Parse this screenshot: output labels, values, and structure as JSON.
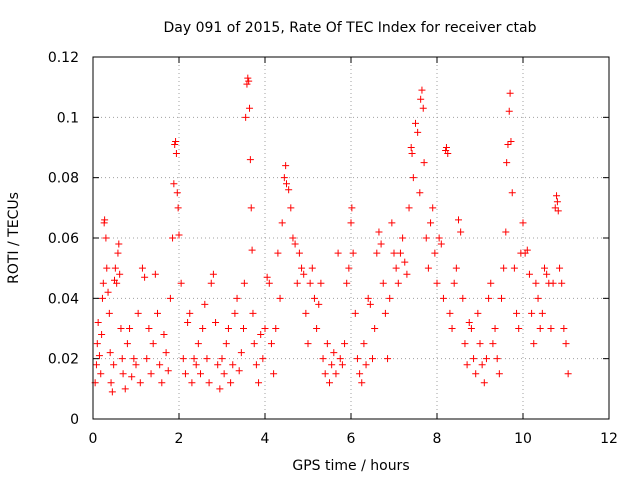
{
  "chart_data": {
    "type": "scatter",
    "title": "Day 091 of 2015, Rate Of TEC Index for receiver ctab",
    "xlabel": "GPS time / hours",
    "ylabel": "ROTI / TECUs",
    "xlim": [
      0,
      12
    ],
    "ylim": [
      0,
      0.12
    ],
    "xticks": [
      0,
      2,
      4,
      6,
      8,
      10,
      12
    ],
    "xtick_labels": [
      "0",
      "2",
      "4",
      "6",
      "8",
      "10",
      "12"
    ],
    "yticks": [
      0,
      0.02,
      0.04,
      0.06,
      0.08,
      0.1,
      0.12
    ],
    "ytick_labels": [
      "0",
      "0.02",
      "0.04",
      "0.06",
      "0.08",
      "0.1",
      "0.12"
    ],
    "grid": true,
    "marker": "+",
    "color": "#ff0000",
    "series": [
      {
        "name": "ROTI",
        "points": [
          [
            0.05,
            0.012
          ],
          [
            0.08,
            0.018
          ],
          [
            0.1,
            0.025
          ],
          [
            0.12,
            0.032
          ],
          [
            0.15,
            0.021
          ],
          [
            0.18,
            0.015
          ],
          [
            0.2,
            0.028
          ],
          [
            0.22,
            0.04
          ],
          [
            0.24,
            0.045
          ],
          [
            0.26,
            0.065
          ],
          [
            0.27,
            0.066
          ],
          [
            0.3,
            0.06
          ],
          [
            0.32,
            0.05
          ],
          [
            0.35,
            0.042
          ],
          [
            0.38,
            0.035
          ],
          [
            0.4,
            0.022
          ],
          [
            0.42,
            0.012
          ],
          [
            0.45,
            0.009
          ],
          [
            0.48,
            0.018
          ],
          [
            0.5,
            0.046
          ],
          [
            0.52,
            0.05
          ],
          [
            0.55,
            0.045
          ],
          [
            0.58,
            0.055
          ],
          [
            0.6,
            0.058
          ],
          [
            0.62,
            0.048
          ],
          [
            0.65,
            0.03
          ],
          [
            0.68,
            0.02
          ],
          [
            0.7,
            0.015
          ],
          [
            0.75,
            0.01
          ],
          [
            0.8,
            0.025
          ],
          [
            0.85,
            0.03
          ],
          [
            0.9,
            0.014
          ],
          [
            0.95,
            0.02
          ],
          [
            1.0,
            0.018
          ],
          [
            1.05,
            0.035
          ],
          [
            1.1,
            0.012
          ],
          [
            1.15,
            0.05
          ],
          [
            1.2,
            0.047
          ],
          [
            1.25,
            0.02
          ],
          [
            1.3,
            0.03
          ],
          [
            1.35,
            0.015
          ],
          [
            1.4,
            0.025
          ],
          [
            1.45,
            0.048
          ],
          [
            1.5,
            0.035
          ],
          [
            1.55,
            0.018
          ],
          [
            1.6,
            0.012
          ],
          [
            1.65,
            0.028
          ],
          [
            1.7,
            0.022
          ],
          [
            1.75,
            0.016
          ],
          [
            1.8,
            0.04
          ],
          [
            1.85,
            0.06
          ],
          [
            1.88,
            0.078
          ],
          [
            1.9,
            0.091
          ],
          [
            1.92,
            0.092
          ],
          [
            1.94,
            0.088
          ],
          [
            1.96,
            0.075
          ],
          [
            1.98,
            0.07
          ],
          [
            2.0,
            0.061
          ],
          [
            2.05,
            0.045
          ],
          [
            2.1,
            0.02
          ],
          [
            2.15,
            0.015
          ],
          [
            2.2,
            0.032
          ],
          [
            2.25,
            0.035
          ],
          [
            2.3,
            0.012
          ],
          [
            2.35,
            0.02
          ],
          [
            2.4,
            0.018
          ],
          [
            2.45,
            0.025
          ],
          [
            2.5,
            0.015
          ],
          [
            2.55,
            0.03
          ],
          [
            2.6,
            0.038
          ],
          [
            2.65,
            0.02
          ],
          [
            2.7,
            0.012
          ],
          [
            2.75,
            0.045
          ],
          [
            2.8,
            0.048
          ],
          [
            2.85,
            0.032
          ],
          [
            2.9,
            0.018
          ],
          [
            2.95,
            0.01
          ],
          [
            3.0,
            0.02
          ],
          [
            3.05,
            0.015
          ],
          [
            3.1,
            0.025
          ],
          [
            3.15,
            0.03
          ],
          [
            3.2,
            0.012
          ],
          [
            3.25,
            0.018
          ],
          [
            3.3,
            0.035
          ],
          [
            3.35,
            0.04
          ],
          [
            3.4,
            0.016
          ],
          [
            3.45,
            0.022
          ],
          [
            3.5,
            0.03
          ],
          [
            3.52,
            0.045
          ],
          [
            3.55,
            0.1
          ],
          [
            3.58,
            0.111
          ],
          [
            3.6,
            0.113
          ],
          [
            3.62,
            0.112
          ],
          [
            3.64,
            0.103
          ],
          [
            3.66,
            0.086
          ],
          [
            3.68,
            0.07
          ],
          [
            3.7,
            0.056
          ],
          [
            3.72,
            0.035
          ],
          [
            3.75,
            0.025
          ],
          [
            3.8,
            0.018
          ],
          [
            3.85,
            0.012
          ],
          [
            3.9,
            0.028
          ],
          [
            3.95,
            0.02
          ],
          [
            4.0,
            0.03
          ],
          [
            4.05,
            0.047
          ],
          [
            4.1,
            0.045
          ],
          [
            4.15,
            0.025
          ],
          [
            4.2,
            0.015
          ],
          [
            4.25,
            0.03
          ],
          [
            4.3,
            0.055
          ],
          [
            4.35,
            0.04
          ],
          [
            4.4,
            0.065
          ],
          [
            4.45,
            0.08
          ],
          [
            4.48,
            0.084
          ],
          [
            4.5,
            0.078
          ],
          [
            4.55,
            0.076
          ],
          [
            4.6,
            0.07
          ],
          [
            4.65,
            0.06
          ],
          [
            4.7,
            0.058
          ],
          [
            4.75,
            0.045
          ],
          [
            4.8,
            0.055
          ],
          [
            4.85,
            0.05
          ],
          [
            4.9,
            0.048
          ],
          [
            4.95,
            0.035
          ],
          [
            5.0,
            0.025
          ],
          [
            5.05,
            0.045
          ],
          [
            5.1,
            0.05
          ],
          [
            5.15,
            0.04
          ],
          [
            5.2,
            0.03
          ],
          [
            5.25,
            0.038
          ],
          [
            5.3,
            0.045
          ],
          [
            5.35,
            0.02
          ],
          [
            5.4,
            0.015
          ],
          [
            5.45,
            0.025
          ],
          [
            5.5,
            0.012
          ],
          [
            5.55,
            0.018
          ],
          [
            5.6,
            0.022
          ],
          [
            5.65,
            0.015
          ],
          [
            5.7,
            0.055
          ],
          [
            5.75,
            0.02
          ],
          [
            5.8,
            0.018
          ],
          [
            5.85,
            0.025
          ],
          [
            5.9,
            0.045
          ],
          [
            5.95,
            0.05
          ],
          [
            6.0,
            0.065
          ],
          [
            6.02,
            0.07
          ],
          [
            6.05,
            0.055
          ],
          [
            6.1,
            0.035
          ],
          [
            6.15,
            0.02
          ],
          [
            6.2,
            0.015
          ],
          [
            6.25,
            0.012
          ],
          [
            6.3,
            0.025
          ],
          [
            6.35,
            0.018
          ],
          [
            6.4,
            0.04
          ],
          [
            6.45,
            0.038
          ],
          [
            6.5,
            0.02
          ],
          [
            6.55,
            0.03
          ],
          [
            6.6,
            0.055
          ],
          [
            6.65,
            0.062
          ],
          [
            6.7,
            0.058
          ],
          [
            6.75,
            0.045
          ],
          [
            6.8,
            0.035
          ],
          [
            6.85,
            0.02
          ],
          [
            6.9,
            0.04
          ],
          [
            6.95,
            0.065
          ],
          [
            7.0,
            0.055
          ],
          [
            7.05,
            0.05
          ],
          [
            7.1,
            0.045
          ],
          [
            7.15,
            0.055
          ],
          [
            7.2,
            0.06
          ],
          [
            7.25,
            0.052
          ],
          [
            7.3,
            0.048
          ],
          [
            7.35,
            0.07
          ],
          [
            7.4,
            0.09
          ],
          [
            7.42,
            0.088
          ],
          [
            7.45,
            0.08
          ],
          [
            7.5,
            0.098
          ],
          [
            7.55,
            0.095
          ],
          [
            7.6,
            0.075
          ],
          [
            7.62,
            0.106
          ],
          [
            7.65,
            0.109
          ],
          [
            7.68,
            0.103
          ],
          [
            7.7,
            0.085
          ],
          [
            7.75,
            0.06
          ],
          [
            7.8,
            0.05
          ],
          [
            7.85,
            0.065
          ],
          [
            7.9,
            0.07
          ],
          [
            7.95,
            0.055
          ],
          [
            8.0,
            0.045
          ],
          [
            8.05,
            0.06
          ],
          [
            8.1,
            0.058
          ],
          [
            8.15,
            0.04
          ],
          [
            8.2,
            0.089
          ],
          [
            8.22,
            0.09
          ],
          [
            8.25,
            0.088
          ],
          [
            8.3,
            0.035
          ],
          [
            8.35,
            0.03
          ],
          [
            8.4,
            0.045
          ],
          [
            8.45,
            0.05
          ],
          [
            8.5,
            0.066
          ],
          [
            8.55,
            0.062
          ],
          [
            8.6,
            0.04
          ],
          [
            8.65,
            0.025
          ],
          [
            8.7,
            0.018
          ],
          [
            8.75,
            0.032
          ],
          [
            8.8,
            0.03
          ],
          [
            8.85,
            0.02
          ],
          [
            8.9,
            0.015
          ],
          [
            8.95,
            0.035
          ],
          [
            9.0,
            0.025
          ],
          [
            9.05,
            0.018
          ],
          [
            9.1,
            0.012
          ],
          [
            9.15,
            0.02
          ],
          [
            9.2,
            0.04
          ],
          [
            9.25,
            0.045
          ],
          [
            9.3,
            0.025
          ],
          [
            9.35,
            0.03
          ],
          [
            9.4,
            0.02
          ],
          [
            9.45,
            0.015
          ],
          [
            9.5,
            0.04
          ],
          [
            9.55,
            0.05
          ],
          [
            9.6,
            0.062
          ],
          [
            9.62,
            0.085
          ],
          [
            9.65,
            0.091
          ],
          [
            9.68,
            0.102
          ],
          [
            9.7,
            0.108
          ],
          [
            9.72,
            0.092
          ],
          [
            9.75,
            0.075
          ],
          [
            9.8,
            0.05
          ],
          [
            9.85,
            0.035
          ],
          [
            9.9,
            0.03
          ],
          [
            9.95,
            0.055
          ],
          [
            10.0,
            0.065
          ],
          [
            10.05,
            0.055
          ],
          [
            10.1,
            0.056
          ],
          [
            10.15,
            0.048
          ],
          [
            10.2,
            0.035
          ],
          [
            10.25,
            0.025
          ],
          [
            10.3,
            0.045
          ],
          [
            10.35,
            0.04
          ],
          [
            10.4,
            0.03
          ],
          [
            10.45,
            0.035
          ],
          [
            10.5,
            0.05
          ],
          [
            10.55,
            0.048
          ],
          [
            10.6,
            0.045
          ],
          [
            10.65,
            0.03
          ],
          [
            10.7,
            0.045
          ],
          [
            10.75,
            0.07
          ],
          [
            10.78,
            0.074
          ],
          [
            10.8,
            0.072
          ],
          [
            10.82,
            0.069
          ],
          [
            10.85,
            0.05
          ],
          [
            10.9,
            0.045
          ],
          [
            10.95,
            0.03
          ],
          [
            11.0,
            0.025
          ],
          [
            11.05,
            0.015
          ]
        ]
      }
    ]
  }
}
